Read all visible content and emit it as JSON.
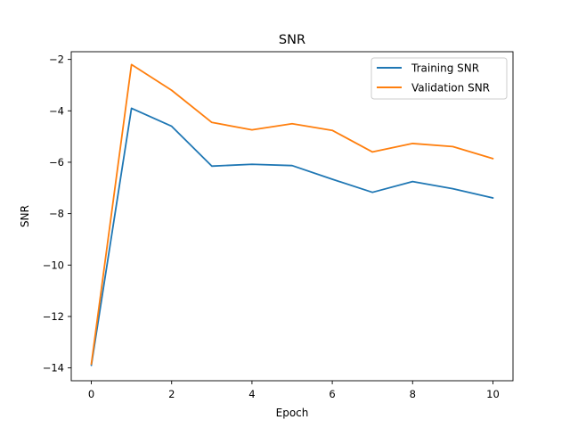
{
  "chart_data": {
    "type": "line",
    "title": "SNR",
    "xlabel": "Epoch",
    "ylabel": "SNR",
    "xlim": [
      -0.5,
      10.5
    ],
    "ylim": [
      -14.5,
      -1.7
    ],
    "xticks": [
      0,
      2,
      4,
      6,
      8,
      10
    ],
    "yticks": [
      -14,
      -12,
      -10,
      -8,
      -6,
      -4,
      -2
    ],
    "x": [
      0,
      1,
      2,
      3,
      4,
      5,
      6,
      7,
      8,
      9,
      10
    ],
    "legend_position": "top-right",
    "grid": false,
    "series": [
      {
        "name": "Training SNR",
        "color": "#1f77b4",
        "values": [
          -13.9,
          -3.9,
          -4.6,
          -6.15,
          -6.08,
          -6.13,
          -6.66,
          -7.17,
          -6.75,
          -7.03,
          -7.39
        ]
      },
      {
        "name": "Validation SNR",
        "color": "#ff7f0e",
        "values": [
          -13.85,
          -2.2,
          -3.2,
          -4.45,
          -4.74,
          -4.5,
          -4.76,
          -5.6,
          -5.27,
          -5.39,
          -5.86
        ]
      }
    ]
  }
}
